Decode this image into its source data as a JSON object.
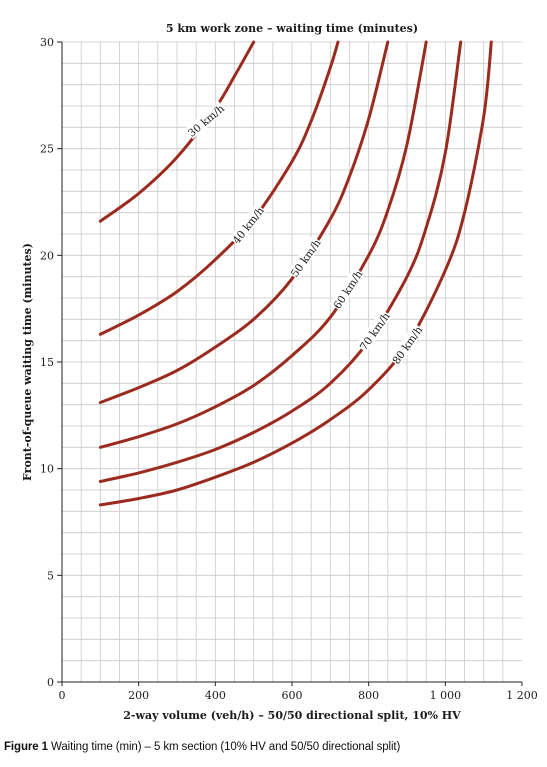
{
  "chart_data": {
    "type": "line",
    "title": "5 km work zone – waiting time (minutes)",
    "xlabel": "2-way volume (veh/h) – 50/50 directional split, 10% HV",
    "ylabel": "Front-of-queue waiting time (minutes)",
    "xlim": [
      0,
      1200
    ],
    "ylim": [
      0,
      30
    ],
    "x_ticks": [
      0,
      200,
      400,
      600,
      800,
      1000,
      1200
    ],
    "x_tick_labels": [
      "0",
      "200",
      "400",
      "600",
      "800",
      "1 000",
      "1 200"
    ],
    "y_ticks": [
      0,
      5,
      10,
      15,
      20,
      25,
      30
    ],
    "y_tick_labels": [
      "0",
      "5",
      "10",
      "15",
      "20",
      "25",
      "30"
    ],
    "grid": true,
    "line_color": "#9b2a1f",
    "series": [
      {
        "name": "30 km/h",
        "x": [
          100,
          200,
          300,
          400,
          450,
          500
        ],
        "y": [
          21.6,
          22.9,
          24.6,
          26.9,
          28.4,
          30.0
        ]
      },
      {
        "name": "40 km/h",
        "x": [
          100,
          200,
          300,
          400,
          500,
          600,
          650,
          700,
          720
        ],
        "y": [
          16.3,
          17.2,
          18.3,
          19.8,
          21.7,
          24.4,
          26.3,
          28.8,
          30.0
        ]
      },
      {
        "name": "50 km/h",
        "x": [
          100,
          200,
          300,
          400,
          500,
          600,
          700,
          750,
          800,
          850
        ],
        "y": [
          13.1,
          13.8,
          14.6,
          15.7,
          17.0,
          18.9,
          21.7,
          23.7,
          26.4,
          30.0
        ]
      },
      {
        "name": "60 km/h",
        "x": [
          100,
          200,
          300,
          400,
          500,
          600,
          700,
          800,
          850,
          900,
          950
        ],
        "y": [
          11.0,
          11.5,
          12.1,
          12.9,
          13.9,
          15.3,
          17.1,
          20.0,
          22.1,
          25.2,
          30.0
        ]
      },
      {
        "name": "70 km/h",
        "x": [
          100,
          200,
          300,
          400,
          500,
          600,
          700,
          800,
          900,
          950,
          1000,
          1040
        ],
        "y": [
          9.4,
          9.8,
          10.3,
          10.9,
          11.7,
          12.7,
          14.0,
          16.0,
          19.0,
          21.3,
          24.8,
          30.0
        ]
      },
      {
        "name": "80 km/h",
        "x": [
          100,
          200,
          300,
          400,
          500,
          600,
          700,
          800,
          900,
          1000,
          1050,
          1100,
          1120
        ],
        "y": [
          8.3,
          8.6,
          9.0,
          9.6,
          10.3,
          11.2,
          12.3,
          13.7,
          15.8,
          19.3,
          22.0,
          26.5,
          30.0
        ]
      }
    ],
    "curve_labels": [
      {
        "text": "30 km/h",
        "x": 375,
        "angle": -40
      },
      {
        "text": "40 km/h",
        "x": 485,
        "angle": -52
      },
      {
        "text": "50 km/h",
        "x": 635,
        "angle": -55
      },
      {
        "text": "60 km/h",
        "x": 745,
        "angle": -57
      },
      {
        "text": "70 km/h",
        "x": 815,
        "angle": -55
      },
      {
        "text": "80 km/h",
        "x": 900,
        "angle": -55
      }
    ]
  },
  "caption": {
    "figure": "Figure 1",
    "text": " Waiting time (min) – 5 km section (10% HV and 50/50 directional split)"
  }
}
